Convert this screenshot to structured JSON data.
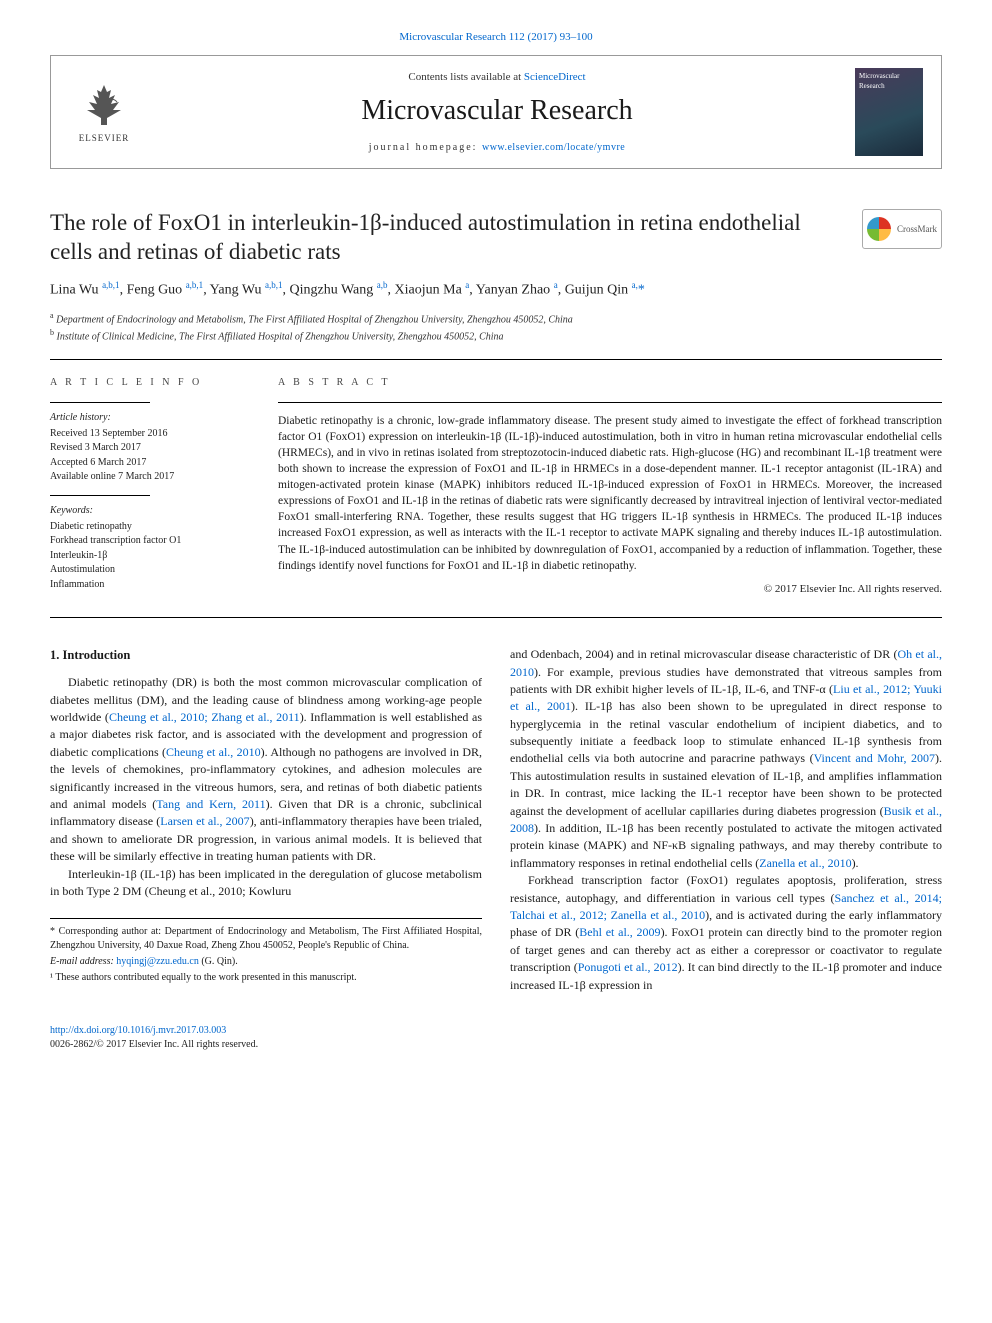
{
  "top_link": "Microvascular Research 112 (2017) 93–100",
  "header": {
    "contents_prefix": "Contents lists available at ",
    "contents_link": "ScienceDirect",
    "journal": "Microvascular Research",
    "homepage_prefix": "journal homepage: ",
    "homepage_url": "www.elsevier.com/locate/ymvre",
    "publisher": "ELSEVIER",
    "cover_text": "Microvascular Research"
  },
  "crossmark": "CrossMark",
  "title": "The role of FoxO1 in interleukin-1β-induced autostimulation in retina endothelial cells and retinas of diabetic rats",
  "authors_html": "Lina Wu <sup>a,b,1</sup>, Feng Guo <sup>a,b,1</sup>, Yang Wu <sup>a,b,1</sup>, Qingzhu Wang <sup>a,b</sup>, Xiaojun Ma <sup>a</sup>, Yanyan Zhao <sup>a</sup>, Guijun Qin <sup>a,</sup><span class='star'>*</span>",
  "affiliations": {
    "a": "Department of Endocrinology and Metabolism, The First Affiliated Hospital of Zhengzhou University, Zhengzhou 450052, China",
    "b": "Institute of Clinical Medicine, The First Affiliated Hospital of Zhengzhou University, Zhengzhou 450052, China"
  },
  "info": {
    "heading": "A R T I C L E  I N F O",
    "history_label": "Article history:",
    "history": [
      "Received 13 September 2016",
      "Revised 3 March 2017",
      "Accepted 6 March 2017",
      "Available online 7 March 2017"
    ],
    "keywords_label": "Keywords:",
    "keywords": [
      "Diabetic retinopathy",
      "Forkhead transcription factor O1",
      "Interleukin-1β",
      "Autostimulation",
      "Inflammation"
    ]
  },
  "abstract": {
    "heading": "A B S T R A C T",
    "text": "Diabetic retinopathy is a chronic, low-grade inflammatory disease. The present study aimed to investigate the effect of forkhead transcription factor O1 (FoxO1) expression on interleukin-1β (IL-1β)-induced autostimulation, both in vitro in human retina microvascular endothelial cells (HRMECs), and in vivo in retinas isolated from streptozotocin-induced diabetic rats. High-glucose (HG) and recombinant IL-1β treatment were both shown to increase the expression of FoxO1 and IL-1β in HRMECs in a dose-dependent manner. IL-1 receptor antagonist (IL-1RA) and mitogen-activated protein kinase (MAPK) inhibitors reduced IL-1β-induced expression of FoxO1 in HRMECs. Moreover, the increased expressions of FoxO1 and IL-1β in the retinas of diabetic rats were significantly decreased by intravitreal injection of lentiviral vector-mediated FoxO1 small-interfering RNA. Together, these results suggest that HG triggers IL-1β synthesis in HRMECs. The produced IL-1β induces increased FoxO1 expression, as well as interacts with the IL-1 receptor to activate MAPK signaling and thereby induces IL-1β autostimulation. The IL-1β-induced autostimulation can be inhibited by downregulation of FoxO1, accompanied by a reduction of inflammation. Together, these findings identify novel functions for FoxO1 and IL-1β in diabetic retinopathy.",
    "copyright": "© 2017 Elsevier Inc. All rights reserved."
  },
  "body": {
    "section_heading": "1. Introduction",
    "col1_p1": "Diabetic retinopathy (DR) is both the most common microvascular complication of diabetes mellitus (DM), and the leading cause of blindness among working-age people worldwide (Cheung et al., 2010; Zhang et al., 2011). Inflammation is well established as a major diabetes risk factor, and is associated with the development and progression of diabetic complications (Cheung et al., 2010). Although no pathogens are involved in DR, the levels of chemokines, pro-inflammatory cytokines, and adhesion molecules are significantly increased in the vitreous humors, sera, and retinas of both diabetic patients and animal models (Tang and Kern, 2011). Given that DR is a chronic, subclinical inflammatory disease (Larsen et al., 2007), anti-inflammatory therapies have been trialed, and shown to ameliorate DR progression, in various animal models. It is believed that these will be similarly effective in treating human patients with DR.",
    "col1_p2": "Interleukin-1β (IL-1β) has been implicated in the deregulation of glucose metabolism in both Type 2 DM (Cheung et al., 2010; Kowluru",
    "col2_p1": "and Odenbach, 2004) and in retinal microvascular disease characteristic of DR (Oh et al., 2010). For example, previous studies have demonstrated that vitreous samples from patients with DR exhibit higher levels of IL-1β, IL-6, and TNF-α (Liu et al., 2012; Yuuki et al., 2001). IL-1β has also been shown to be upregulated in direct response to hyperglycemia in the retinal vascular endothelium of incipient diabetics, and to subsequently initiate a feedback loop to stimulate enhanced IL-1β synthesis from endothelial cells via both autocrine and paracrine pathways (Vincent and Mohr, 2007). This autostimulation results in sustained elevation of IL-1β, and amplifies inflammation in DR. In contrast, mice lacking the IL-1 receptor have been shown to be protected against the development of acellular capillaries during diabetes progression (Busik et al., 2008). In addition, IL-1β has been recently postulated to activate the mitogen activated protein kinase (MAPK) and NF-κB signaling pathways, and may thereby contribute to inflammatory responses in retinal endothelial cells (Zanella et al., 2010).",
    "col2_p2": "Forkhead transcription factor (FoxO1) regulates apoptosis, proliferation, stress resistance, autophagy, and differentiation in various cell types (Sanchez et al., 2014; Talchai et al., 2012; Zanella et al., 2010), and is activated during the early inflammatory phase of DR (Behl et al., 2009). FoxO1 protein can directly bind to the promoter region of target genes and can thereby act as either a corepressor or coactivator to regulate transcription (Ponugoti et al., 2012). It can bind directly to the IL-1β promoter and induce increased IL-1β expression in"
  },
  "footnotes": {
    "corr": "* Corresponding author at: Department of Endocrinology and Metabolism, The First Affiliated Hospital, Zhengzhou University, 40 Daxue Road, Zheng Zhou 450052, People's Republic of China.",
    "email_label": "E-mail address: ",
    "email": "hyqingj@zzu.edu.cn",
    "email_name": " (G. Qin).",
    "equal": "¹ These authors contributed equally to the work presented in this manuscript."
  },
  "footer": {
    "doi": "http://dx.doi.org/10.1016/j.mvr.2017.03.003",
    "issn": "0026-2862/© 2017 Elsevier Inc. All rights reserved."
  },
  "colors": {
    "link": "#0066cc",
    "text": "#1a1a1a",
    "rule": "#000000",
    "background": "#ffffff"
  },
  "fonts": {
    "title_size_pt": 23,
    "journal_size_pt": 28,
    "body_size_pt": 12,
    "abstract_size_pt": 11.5,
    "info_size_pt": 10
  }
}
